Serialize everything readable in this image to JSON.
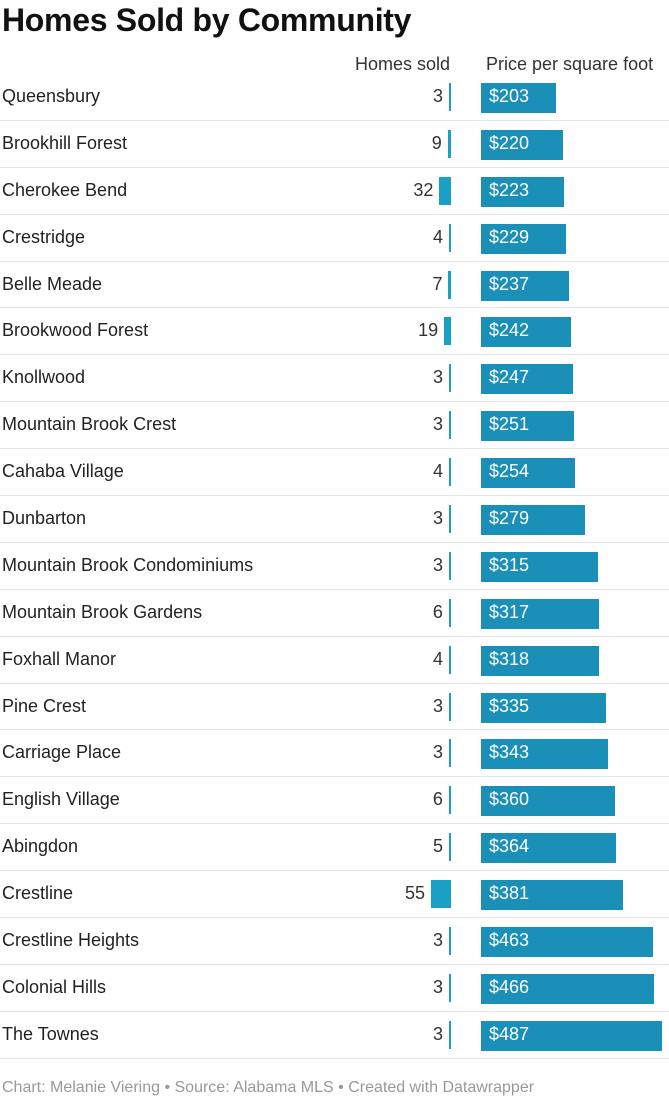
{
  "chart_data": {
    "type": "table",
    "title": "Homes Sold by Community",
    "columns": [
      "Homes sold",
      "Price per square foot"
    ],
    "categories": [
      "Queensbury",
      "Brookhill Forest",
      "Cherokee Bend",
      "Crestridge",
      "Belle Meade",
      "Brookwood Forest",
      "Knollwood",
      "Mountain Brook Crest",
      "Cahaba Village",
      "Dunbarton",
      "Mountain Brook Condominiums",
      "Mountain Brook Gardens",
      "Foxhall Manor",
      "Pine Crest",
      "Carriage Place",
      "English Village",
      "Abingdon",
      "Crestline",
      "Crestline Heights",
      "Colonial Hills",
      "The Townes"
    ],
    "series": [
      {
        "name": "Homes sold",
        "values": [
          3,
          9,
          32,
          4,
          7,
          19,
          3,
          3,
          4,
          3,
          3,
          6,
          4,
          3,
          3,
          6,
          5,
          55,
          3,
          3,
          3
        ]
      },
      {
        "name": "Price per square foot",
        "values": [
          203,
          220,
          223,
          229,
          237,
          242,
          247,
          251,
          254,
          279,
          315,
          317,
          318,
          335,
          343,
          360,
          364,
          381,
          463,
          466,
          487
        ]
      }
    ],
    "price_labels": [
      "$203",
      "$220",
      "$223",
      "$229",
      "$237",
      "$242",
      "$247",
      "$251",
      "$254",
      "$279",
      "$315",
      "$317",
      "$318",
      "$335",
      "$343",
      "$360",
      "$364",
      "$381",
      "$463",
      "$466",
      "$487"
    ],
    "sold_range": [
      0,
      55
    ],
    "price_range": [
      0,
      487
    ]
  },
  "footer": "Chart: Melanie Viering • Source: Alabama MLS • Created with Datawrapper",
  "colors": {
    "sold_bar": "#1aa0c4",
    "price_bar": "#1a8fb8"
  }
}
